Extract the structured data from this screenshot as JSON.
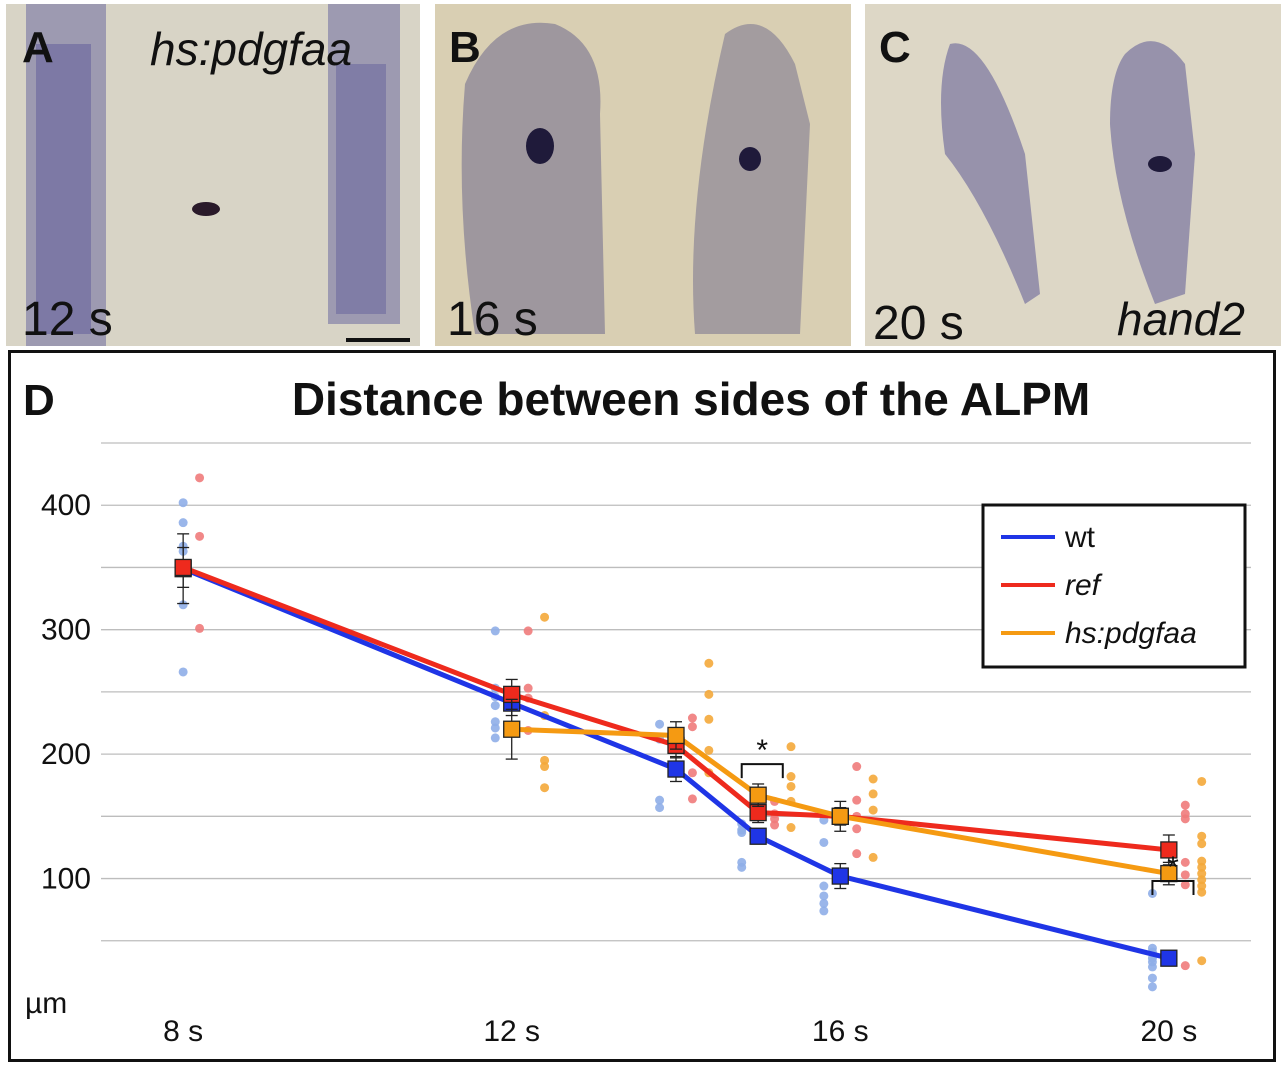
{
  "panels": [
    {
      "letter": "A",
      "stage": "12 s",
      "gene": "hs:pdgfaa"
    },
    {
      "letter": "B",
      "stage": "16 s",
      "gene": ""
    },
    {
      "letter": "C",
      "stage": "20 s",
      "gene": "hand2"
    }
  ],
  "colors": {
    "wt": "#1f35e6",
    "ref": "#ee2a1d",
    "hs_pdgfaa": "#f59a12",
    "wt_dots": "#8faee8",
    "ref_dots": "#ef7b7b",
    "hs_dots": "#f4a93a",
    "stain": "#3f3f86",
    "tissue": "#d9d3c1"
  },
  "chart_data": {
    "type": "line",
    "panel_letter": "D",
    "title": "Distance between sides of the ALPM",
    "ylabel": "µm",
    "xlabel": "",
    "ylim": [
      0,
      450
    ],
    "xlim": [
      7,
      21
    ],
    "yticks": [
      100,
      200,
      300,
      400
    ],
    "xticks": [
      {
        "x": 8,
        "label": "8 s"
      },
      {
        "x": 12,
        "label": "12 s"
      },
      {
        "x": 16,
        "label": "16 s"
      },
      {
        "x": 20,
        "label": "20 s"
      }
    ],
    "grid": true,
    "legend_position": "top-right",
    "series": [
      {
        "name": "wt",
        "italic": false,
        "x": [
          8,
          12,
          14,
          15,
          16,
          20
        ],
        "values": [
          349,
          241,
          188,
          134,
          102,
          36
        ],
        "err": [
          28,
          10,
          10,
          5,
          10,
          5
        ],
        "points": [
          [
            8,
            402
          ],
          [
            8,
            386
          ],
          [
            8,
            367
          ],
          [
            8,
            363
          ],
          [
            8,
            320
          ],
          [
            8,
            266
          ],
          [
            11.8,
            299
          ],
          [
            11.8,
            253
          ],
          [
            11.8,
            246
          ],
          [
            11.8,
            239
          ],
          [
            11.8,
            226
          ],
          [
            11.8,
            221
          ],
          [
            11.8,
            213
          ],
          [
            13.8,
            224
          ],
          [
            13.8,
            212
          ],
          [
            13.8,
            163
          ],
          [
            13.8,
            157
          ],
          [
            14.8,
            144
          ],
          [
            14.8,
            139
          ],
          [
            14.8,
            137
          ],
          [
            14.8,
            113
          ],
          [
            14.8,
            109
          ],
          [
            15.8,
            147
          ],
          [
            15.8,
            129
          ],
          [
            15.8,
            94
          ],
          [
            15.8,
            86
          ],
          [
            15.8,
            80
          ],
          [
            15.8,
            74
          ],
          [
            19.8,
            88
          ],
          [
            19.8,
            44
          ],
          [
            19.8,
            41
          ],
          [
            19.8,
            36
          ],
          [
            19.8,
            33
          ],
          [
            19.8,
            29
          ],
          [
            19.8,
            20
          ],
          [
            19.8,
            13
          ]
        ]
      },
      {
        "name": "ref",
        "italic": true,
        "x": [
          8,
          12,
          14,
          15,
          16,
          20
        ],
        "values": [
          350,
          248,
          207,
          153,
          150,
          123
        ],
        "err": [
          16,
          12,
          10,
          8,
          7,
          12
        ],
        "points": [
          [
            8.2,
            422
          ],
          [
            8.2,
            375
          ],
          [
            8.2,
            301
          ],
          [
            12.2,
            299
          ],
          [
            12.2,
            253
          ],
          [
            12.2,
            245
          ],
          [
            12.2,
            219
          ],
          [
            14.2,
            229
          ],
          [
            14.2,
            222
          ],
          [
            14.2,
            185
          ],
          [
            14.2,
            164
          ],
          [
            15.2,
            162
          ],
          [
            15.2,
            152
          ],
          [
            15.2,
            148
          ],
          [
            15.2,
            143
          ],
          [
            16.2,
            190
          ],
          [
            16.2,
            163
          ],
          [
            16.2,
            150
          ],
          [
            16.2,
            140
          ],
          [
            16.2,
            120
          ],
          [
            20.2,
            159
          ],
          [
            20.2,
            152
          ],
          [
            20.2,
            148
          ],
          [
            20.2,
            113
          ],
          [
            20.2,
            103
          ],
          [
            20.2,
            95
          ],
          [
            20.2,
            30
          ]
        ]
      },
      {
        "name": "hs:pdgfaa",
        "italic": true,
        "x": [
          12,
          14,
          15,
          16,
          20
        ],
        "values": [
          220,
          215,
          167,
          150,
          104
        ],
        "err": [
          24,
          11,
          9,
          12,
          9
        ],
        "points": [
          [
            12.4,
            310
          ],
          [
            12.4,
            231
          ],
          [
            12.4,
            195
          ],
          [
            12.4,
            190
          ],
          [
            12.4,
            173
          ],
          [
            14.4,
            273
          ],
          [
            14.4,
            248
          ],
          [
            14.4,
            228
          ],
          [
            14.4,
            203
          ],
          [
            14.4,
            185
          ],
          [
            15.4,
            206
          ],
          [
            15.4,
            182
          ],
          [
            15.4,
            174
          ],
          [
            15.4,
            162
          ],
          [
            15.4,
            141
          ],
          [
            16.4,
            180
          ],
          [
            16.4,
            168
          ],
          [
            16.4,
            155
          ],
          [
            16.4,
            117
          ],
          [
            20.4,
            178
          ],
          [
            20.4,
            134
          ],
          [
            20.4,
            128
          ],
          [
            20.4,
            114
          ],
          [
            20.4,
            109
          ],
          [
            20.4,
            104
          ],
          [
            20.4,
            99
          ],
          [
            20.4,
            94
          ],
          [
            20.4,
            89
          ],
          [
            20.4,
            34
          ]
        ]
      }
    ],
    "significance": [
      {
        "x1": 14.8,
        "x2": 15.3,
        "y": 192,
        "label": "*"
      },
      {
        "x1": 19.8,
        "x2": 20.3,
        "y": 98,
        "label": "*"
      }
    ]
  }
}
